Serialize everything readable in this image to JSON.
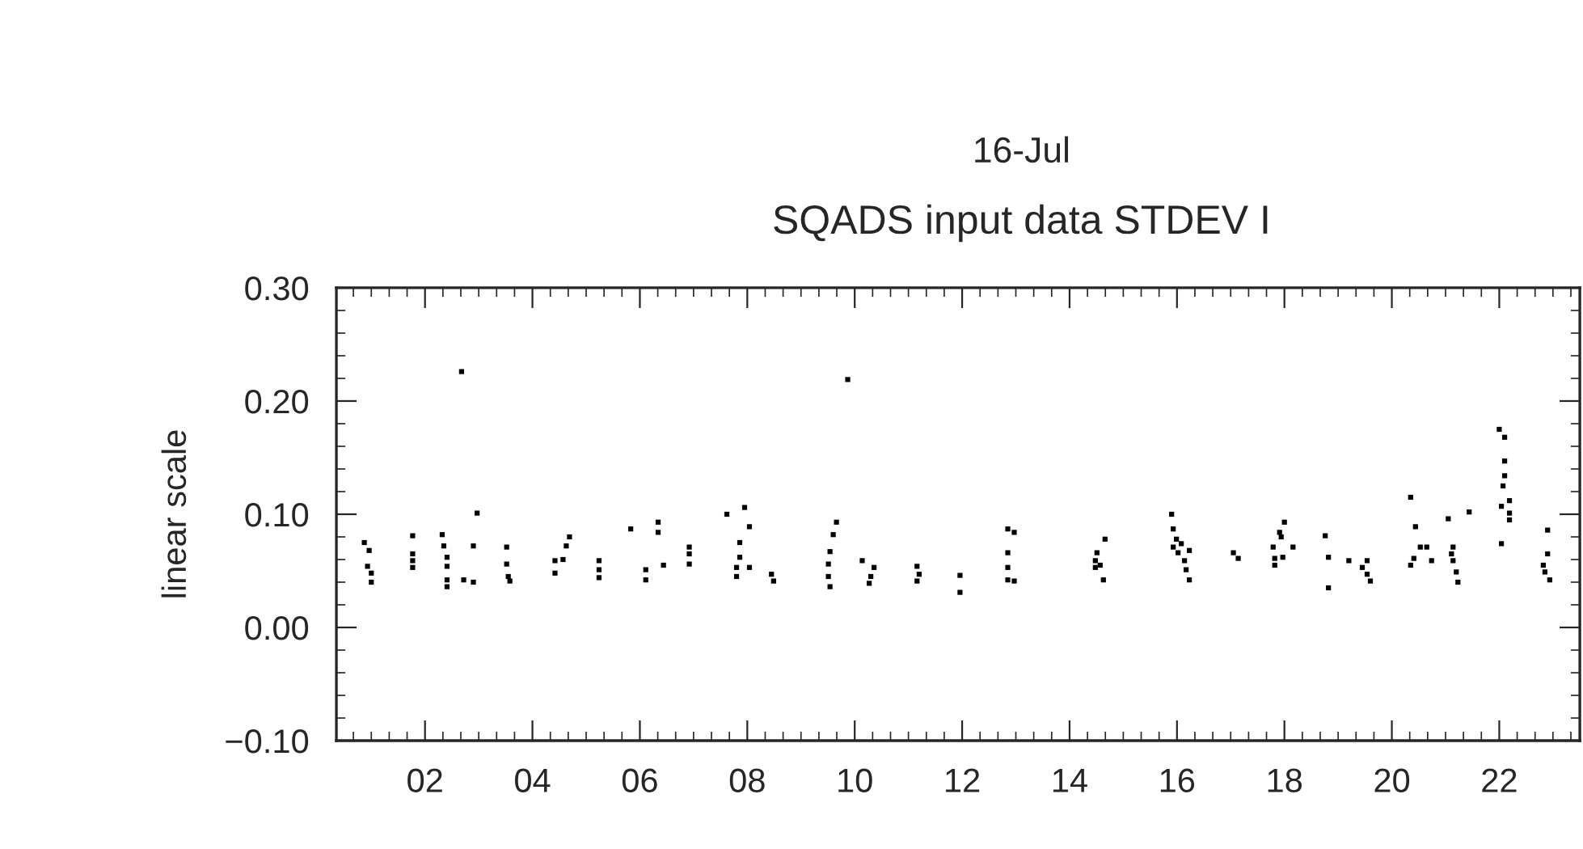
{
  "chart_data": {
    "type": "scatter",
    "title": "SQADS input data STDEV I",
    "subtitle": "16-Jul",
    "ylabel": "linear scale",
    "marker": "square",
    "grid": false,
    "legend": false,
    "xlim": [
      0.35,
      23.5
    ],
    "xticks": [
      {
        "value": 2,
        "label": "02"
      },
      {
        "value": 4,
        "label": "04"
      },
      {
        "value": 6,
        "label": "06"
      },
      {
        "value": 8,
        "label": "08"
      },
      10,
      12,
      14,
      16,
      18,
      20,
      22
    ],
    "ylim": [
      -0.1,
      0.3
    ],
    "yticks": [
      {
        "value": -0.1,
        "label": "−0.10"
      },
      {
        "value": 0,
        "label": "0.00"
      },
      {
        "value": 0.1,
        "label": "0.10"
      },
      {
        "value": 0.2,
        "label": "0.20"
      },
      {
        "value": 0.3,
        "label": "0.30"
      }
    ],
    "series": [
      {
        "color": "#000000",
        "x": [
          0.87,
          0.96,
          0.93,
          1.0,
          1.0,
          1.77,
          1.77,
          1.77,
          1.77,
          2.32,
          2.35,
          2.41,
          2.41,
          2.41,
          2.41,
          2.72,
          2.9,
          2.97,
          2.9,
          3.52,
          3.52,
          3.55,
          3.58,
          4.69,
          4.63,
          4.57,
          4.42,
          4.42,
          5.24,
          5.24,
          5.24,
          5.83,
          6.34,
          6.34,
          6.44,
          6.11,
          6.11,
          6.92,
          6.92,
          6.92,
          7.62,
          7.95,
          8.04,
          7.86,
          7.86,
          7.8,
          7.8,
          8.04,
          8.45,
          8.49,
          9.66,
          9.6,
          9.54,
          9.51,
          9.51,
          9.54,
          10.14,
          10.36,
          10.3,
          10.27,
          11.16,
          11.2,
          11.16,
          11.96,
          11.96,
          12.85,
          12.97,
          12.85,
          12.85,
          12.85,
          12.97,
          14.66,
          14.51,
          14.48,
          14.57,
          14.48,
          14.63,
          15.9,
          15.93,
          15.99,
          16.08,
          15.93,
          16.02,
          16.23,
          16.14,
          16.17,
          16.23,
          17.05,
          17.14,
          18.0,
          17.91,
          17.94,
          17.79,
          18.16,
          17.97,
          17.82,
          17.82,
          18.76,
          18.82,
          18.82,
          19.2,
          19.54,
          19.45,
          19.54,
          19.6,
          20.35,
          20.44,
          20.53,
          20.65,
          20.41,
          20.35,
          20.74,
          21.05,
          21.14,
          21.11,
          21.14,
          21.2,
          21.23,
          21.44,
          22.0,
          22.1,
          22.1,
          22.1,
          22.07,
          22.19,
          22.04,
          22.19,
          22.19,
          22.04,
          22.9,
          22.9,
          22.82,
          22.85,
          22.94,
          2.68,
          9.87
        ],
        "values": [
          0.075,
          0.068,
          0.054,
          0.048,
          0.04,
          0.081,
          0.065,
          0.059,
          0.053,
          0.082,
          0.072,
          0.062,
          0.054,
          0.042,
          0.036,
          0.042,
          0.04,
          0.101,
          0.072,
          0.071,
          0.056,
          0.045,
          0.041,
          0.08,
          0.072,
          0.06,
          0.059,
          0.048,
          0.059,
          0.051,
          0.044,
          0.087,
          0.093,
          0.084,
          0.055,
          0.051,
          0.042,
          0.071,
          0.065,
          0.056,
          0.1,
          0.106,
          0.089,
          0.075,
          0.062,
          0.053,
          0.045,
          0.053,
          0.047,
          0.041,
          0.093,
          0.082,
          0.067,
          0.056,
          0.045,
          0.036,
          0.059,
          0.053,
          0.045,
          0.039,
          0.054,
          0.047,
          0.041,
          0.046,
          0.031,
          0.087,
          0.084,
          0.066,
          0.053,
          0.042,
          0.041,
          0.078,
          0.066,
          0.059,
          0.055,
          0.053,
          0.042,
          0.1,
          0.087,
          0.078,
          0.074,
          0.071,
          0.066,
          0.068,
          0.059,
          0.051,
          0.042,
          0.066,
          0.061,
          0.093,
          0.084,
          0.08,
          0.071,
          0.071,
          0.062,
          0.061,
          0.055,
          0.081,
          0.062,
          0.035,
          0.059,
          0.059,
          0.053,
          0.047,
          0.041,
          0.115,
          0.089,
          0.071,
          0.071,
          0.061,
          0.055,
          0.059,
          0.096,
          0.071,
          0.065,
          0.059,
          0.049,
          0.04,
          0.102,
          0.175,
          0.168,
          0.147,
          0.134,
          0.125,
          0.112,
          0.107,
          0.101,
          0.095,
          0.074,
          0.086,
          0.065,
          0.055,
          0.049,
          0.042,
          0.226,
          0.219
        ]
      }
    ]
  }
}
